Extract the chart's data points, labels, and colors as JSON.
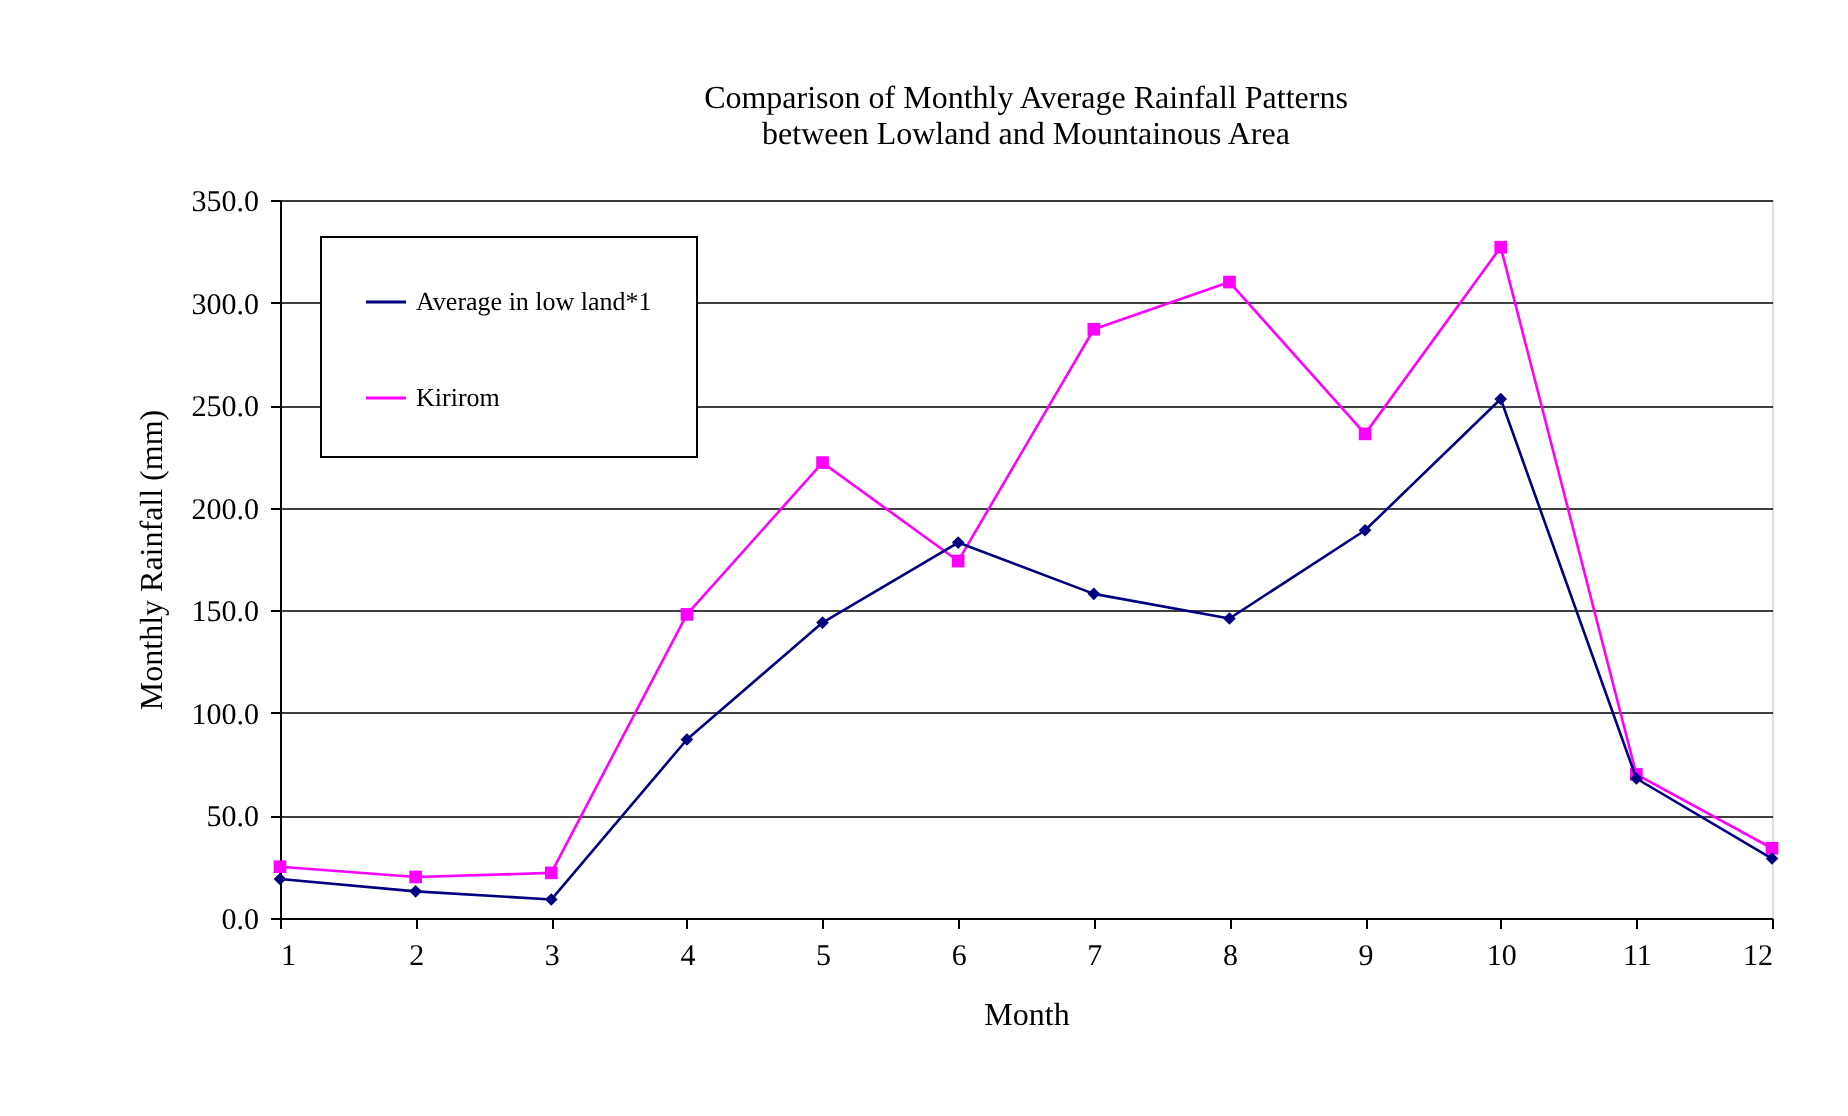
{
  "chart_data": {
    "type": "line",
    "title": [
      "Comparison of Monthly Average Rainfall Patterns",
      "between Lowland and Mountainous Area"
    ],
    "xlabel": "Month",
    "ylabel": "Monthly Rainfall (mm)",
    "x": [
      1,
      2,
      3,
      4,
      5,
      6,
      7,
      8,
      9,
      10,
      11,
      12
    ],
    "series": [
      {
        "name": "Average in low land*1",
        "color": "#000080",
        "marker": "diamond",
        "values": [
          19,
          13,
          9,
          87,
          144,
          183,
          158,
          146,
          189,
          253,
          68,
          29
        ]
      },
      {
        "name": "Kirirom",
        "color": "#ff00ff",
        "marker": "square",
        "values": [
          25,
          20,
          22,
          148,
          222,
          174,
          287,
          310,
          236,
          327,
          70,
          34
        ]
      }
    ],
    "xlim": [
      1,
      12
    ],
    "xticks": [
      1,
      2,
      3,
      4,
      5,
      6,
      7,
      8,
      9,
      10,
      11,
      12
    ],
    "ylim": [
      0,
      350
    ],
    "yticks": [
      {
        "value": 0,
        "label": "0.0"
      },
      {
        "value": 50,
        "label": "50.0"
      },
      {
        "value": 100,
        "label": "100.0"
      },
      {
        "value": 150,
        "label": "150.0"
      },
      {
        "value": 200,
        "label": "200.0"
      },
      {
        "value": 250,
        "label": "250.0"
      },
      {
        "value": 300,
        "label": "300.0"
      },
      {
        "value": 350,
        "label": "350.0"
      }
    ],
    "grid": "y",
    "legend": "top left",
    "line_style": "solid"
  }
}
